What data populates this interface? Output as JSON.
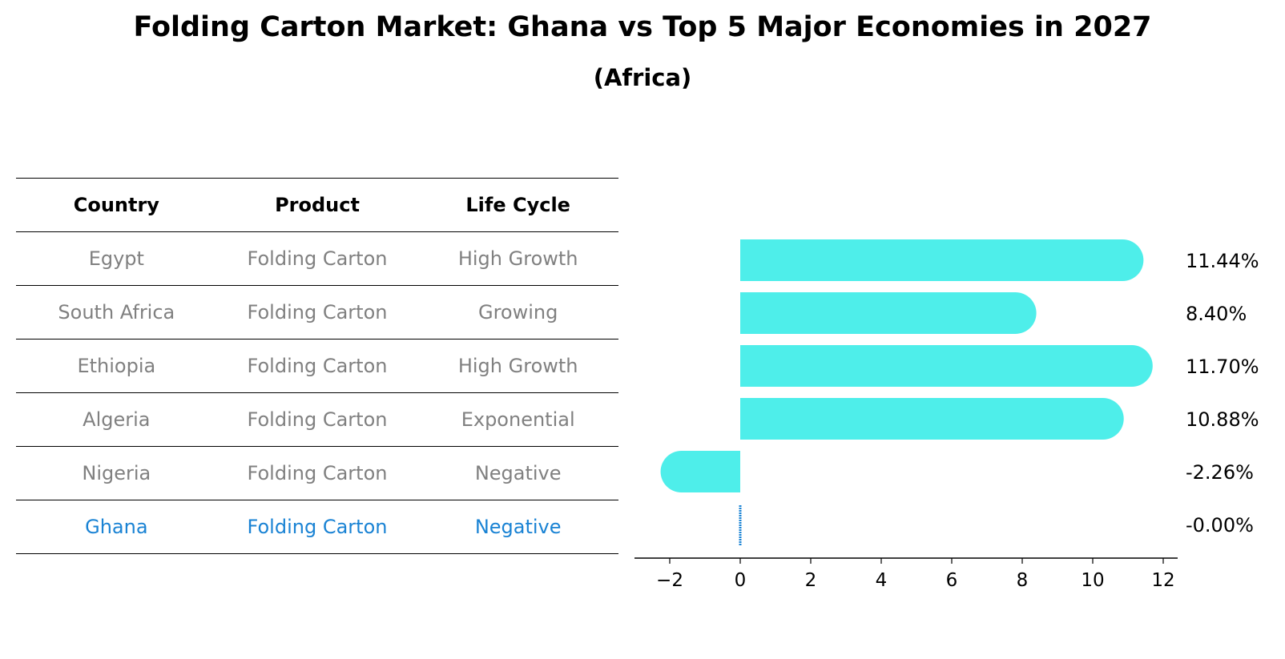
{
  "title": "Folding Carton Market: Ghana vs Top 5 Major Economies in 2027",
  "subtitle": "(Africa)",
  "table": {
    "headers": [
      "Country",
      "Product",
      "Life Cycle"
    ],
    "rows": [
      [
        "Egypt",
        "Folding Carton",
        "High Growth"
      ],
      [
        "South Africa",
        "Folding Carton",
        "Growing"
      ],
      [
        "Ethiopia",
        "Folding Carton",
        "High Growth"
      ],
      [
        "Algeria",
        "Folding Carton",
        "Exponential"
      ],
      [
        "Nigeria",
        "Folding Carton",
        "Negative"
      ],
      [
        "Ghana",
        "Folding Carton",
        "Negative"
      ]
    ]
  },
  "colors": {
    "bar": "#4eeeea",
    "highlight": "#1a83d4",
    "muted": "#808080"
  },
  "chart_data": {
    "type": "bar",
    "orientation": "horizontal",
    "categories": [
      "Egypt",
      "South Africa",
      "Ethiopia",
      "Algeria",
      "Nigeria",
      "Ghana"
    ],
    "values": [
      11.44,
      8.4,
      11.7,
      10.88,
      -2.26,
      -0.0
    ],
    "labels": [
      "11.44%",
      "8.40%",
      "11.70%",
      "10.88%",
      "-2.26%",
      "-0.00%"
    ],
    "xticks": [
      -2,
      0,
      2,
      4,
      6,
      8,
      10,
      12
    ],
    "xtick_labels": [
      "−2",
      "0",
      "2",
      "4",
      "6",
      "8",
      "10",
      "12"
    ],
    "xlim": [
      -3,
      12.5
    ],
    "highlight": "Ghana"
  }
}
